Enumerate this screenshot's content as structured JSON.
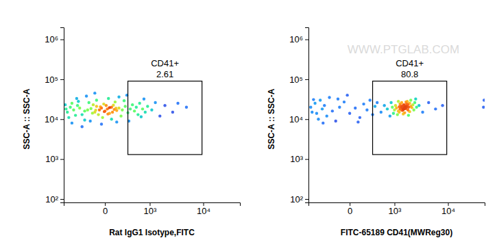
{
  "chart_data": [
    {
      "type": "scatter",
      "x_label": "Rat IgG1 Isotype,FITC",
      "y_label": "SSC-A :: SSC-A",
      "xlim": [
        -840,
        44000
      ],
      "ylim": [
        82,
        2000000
      ],
      "log": "y",
      "xticks": [
        0,
        {
          "value": 1000,
          "label": "10³"
        },
        {
          "value": 10000,
          "label": "10⁴"
        }
      ],
      "yticks": [
        {
          "value": 100,
          "label": "10²"
        },
        {
          "value": 1000,
          "label": "10³"
        },
        {
          "value": 10000,
          "label": "10⁴"
        },
        {
          "value": 100000,
          "label": "10⁵"
        },
        {
          "value": 1000000,
          "label": "10⁶"
        }
      ],
      "gate": {
        "label": "CD41+",
        "value": 2.61,
        "x": [
          300,
          9500
        ],
        "y": [
          1300,
          90000
        ]
      },
      "x": [
        -50,
        20,
        -100,
        60,
        0,
        -30,
        90,
        -150,
        40,
        -80,
        120,
        -200,
        10,
        -60,
        150,
        -120,
        70,
        -10,
        200,
        -250,
        -350,
        250,
        -300,
        300,
        -180,
        100,
        -400,
        350,
        -20,
        180,
        -500,
        -600,
        -700,
        -450,
        400,
        -80,
        60,
        -550,
        450,
        -250,
        -750,
        230,
        -380,
        500,
        -160,
        30,
        -650,
        120,
        -420,
        550,
        600,
        -780,
        -30,
        320,
        -220,
        700,
        650,
        150,
        -550,
        280,
        800,
        900,
        1100,
        1300,
        1600,
        2000,
        2800,
        3500,
        5000,
        750,
        -100,
        -300,
        40,
        -40,
        80,
        -90,
        -5,
        110,
        -130,
        25
      ],
      "values": [
        17000,
        18000,
        15000,
        20000,
        16000,
        19000,
        17500,
        18500,
        14000,
        21000,
        16500,
        17000,
        22000,
        13000,
        19000,
        23000,
        15000,
        24000,
        17000,
        16000,
        19000,
        21000,
        13000,
        14500,
        26000,
        27000,
        22000,
        18000,
        11000,
        12000,
        17000,
        20000,
        15000,
        12500,
        23000,
        30000,
        10000,
        25000,
        16000,
        9500,
        18000,
        29000,
        28000,
        20000,
        9000,
        33000,
        11000,
        8500,
        33000,
        13000,
        25000,
        23000,
        7500,
        9000,
        38000,
        18000,
        11500,
        36000,
        8000,
        40000,
        15000,
        21000,
        17000,
        26000,
        12000,
        22000,
        15000,
        25000,
        20000,
        32000,
        45000,
        6500,
        19500,
        20500,
        22500,
        16800,
        15500,
        18800,
        14200,
        13500
      ]
    },
    {
      "type": "scatter",
      "x_label": "FITC-65189 CD41(MWReg30)",
      "y_label": "SSC-A :: SSC-A",
      "watermark": "WWW.PTGLAB.COM",
      "xlim": [
        -840,
        44000
      ],
      "ylim": [
        82,
        2000000
      ],
      "log": "y",
      "xticks": [
        0,
        {
          "value": 1000,
          "label": "10³"
        },
        {
          "value": 10000,
          "label": "10⁴"
        }
      ],
      "yticks": [
        {
          "value": 100,
          "label": "10²"
        },
        {
          "value": 1000,
          "label": "10³"
        },
        {
          "value": 10000,
          "label": "10⁴"
        },
        {
          "value": 100000,
          "label": "10⁵"
        },
        {
          "value": 1000000,
          "label": "10⁶"
        }
      ],
      "gate": {
        "label": "CD41+",
        "value": 80.8,
        "x": [
          300,
          9500
        ],
        "y": [
          1300,
          90000
        ]
      },
      "x": [
        -700,
        -600,
        -500,
        -450,
        -400,
        -350,
        -300,
        -250,
        -200,
        -150,
        -100,
        -50,
        0,
        50,
        100,
        150,
        200,
        250,
        300,
        350,
        -750,
        -550,
        -380,
        -120,
        80,
        400,
        -20,
        -650,
        500,
        600,
        700,
        800,
        850,
        1000,
        1100,
        1200,
        1300,
        1400,
        1500,
        1600,
        1700,
        1800,
        1900,
        1250,
        1350,
        1450,
        1550,
        1650,
        1750,
        1850,
        2000,
        2100,
        2200,
        950,
        1050,
        1150,
        1400,
        1600,
        1800,
        2000,
        2300,
        2500,
        2700,
        1300,
        1500,
        1700,
        1900,
        2100,
        2400,
        2600,
        3000,
        900,
        1200,
        1450,
        1550,
        1650,
        1500,
        1400,
        1600,
        1750,
        1350,
        1850,
        1250,
        3500,
        4500,
        6000,
        8000,
        42000,
        43000
      ],
      "values": [
        15000,
        25000,
        10000,
        30000,
        18000,
        22000,
        12000,
        35000,
        16000,
        9000,
        20000,
        27000,
        14000,
        19000,
        11000,
        24000,
        17000,
        30000,
        13000,
        21000,
        20000,
        14000,
        8000,
        32000,
        8500,
        26000,
        40000,
        31000,
        15000,
        22000,
        18000,
        12000,
        26000,
        17000,
        19000,
        16000,
        18000,
        20000,
        17500,
        21000,
        19000,
        22000,
        20000,
        15000,
        21500,
        16500,
        23000,
        18500,
        24000,
        17000,
        25000,
        21000,
        19500,
        14000,
        22000,
        13000,
        26000,
        14500,
        28000,
        15500,
        23000,
        26000,
        20000,
        24000,
        13500,
        27000,
        12500,
        30000,
        17000,
        32000,
        22000,
        20000,
        28000,
        19500,
        18000,
        20500,
        22000,
        17000,
        19000,
        21000,
        18500,
        23500,
        20500,
        15000,
        26000,
        18000,
        22000,
        20000,
        30000
      ]
    }
  ]
}
